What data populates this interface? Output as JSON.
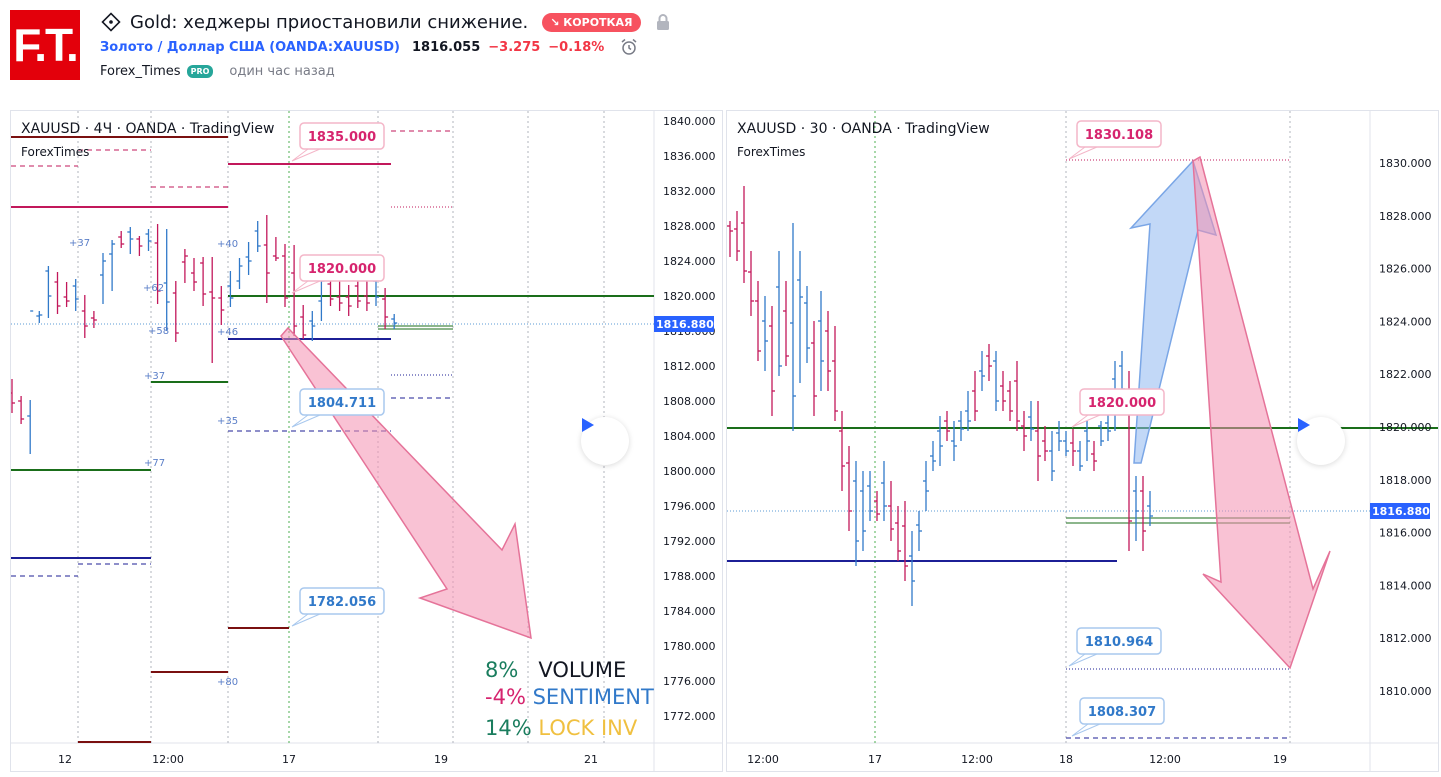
{
  "header": {
    "logo_text": "F.T.",
    "title": "Gold: хеджеры приостановили снижение.",
    "badge": "КОРОТКАЯ",
    "symbol": "Золото / Доллар США (OANDA:XAUUSD)",
    "price": "1816.055",
    "change": "−3.275",
    "change_pct": "−0.18%",
    "author": "Forex_Times",
    "pro_badge": "PRO",
    "time": "один час назад"
  },
  "colors": {
    "pink": "#d6246e",
    "blue": "#3179c9",
    "green": "#1a6e1a",
    "navy": "#1c1f96",
    "dark_red": "#7a1010",
    "badge": "#f7525f"
  },
  "left_chart": {
    "label": "XAUUSD · 4Ч · OANDA · TradingView",
    "watermark": "ForexTimes",
    "y_ticks": [
      "1840.000",
      "1836.000",
      "1832.000",
      "1828.000",
      "1824.000",
      "1820.000",
      "1816.000",
      "1812.000",
      "1808.000",
      "1804.000",
      "1800.000",
      "1796.000",
      "1792.000",
      "1788.000",
      "1784.000",
      "1780.000",
      "1776.000",
      "1772.000"
    ],
    "x_ticks": [
      "12",
      "12:00",
      "17",
      "19",
      "21"
    ],
    "price_label": "1816.880",
    "callouts": [
      "1835.000",
      "1820.000",
      "1804.711",
      "1782.056"
    ],
    "small_numbers": [
      "+37",
      "+62",
      "+58",
      "+37",
      "+77",
      "+40",
      "+46",
      "+35",
      "+80"
    ],
    "legend": [
      {
        "pct": "8%",
        "label": "VOLUME",
        "pct_color": "#1a7d5e",
        "label_color": "#131722"
      },
      {
        "pct": "-4%",
        "label": "SENTIMENT",
        "pct_color": "#d6246e",
        "label_color": "#3179c9"
      },
      {
        "pct": "14%",
        "label": "LOCK INV",
        "pct_color": "#1a7d5e",
        "label_color": "#f0c040"
      }
    ]
  },
  "right_chart": {
    "label": "XAUUSD · 30 · OANDA · TradingView",
    "watermark": "ForexTimes",
    "y_ticks": [
      "1830.000",
      "1828.000",
      "1826.000",
      "1824.000",
      "1822.000",
      "1820.000",
      "1818.000",
      "1816.000",
      "1814.000",
      "1812.000",
      "1810.000"
    ],
    "x_ticks": [
      "12:00",
      "17",
      "12:00",
      "18",
      "12:00",
      "19"
    ],
    "price_label": "1816.880",
    "callouts": [
      "1830.108",
      "1820.000",
      "1810.964",
      "1808.307"
    ]
  }
}
